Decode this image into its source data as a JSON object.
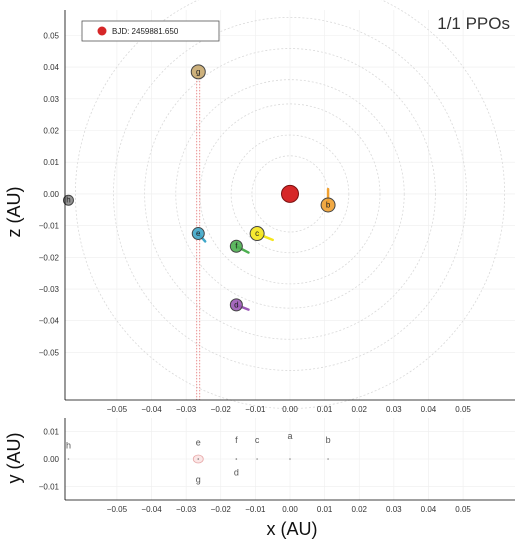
{
  "chart_data": [
    {
      "type": "scatter",
      "title": "1/1 PPOs",
      "xlabel": "",
      "ylabel": "z (AU)",
      "xlim": [
        -0.065,
        0.065
      ],
      "ylim": [
        -0.065,
        0.058
      ],
      "xticks": [
        -0.05,
        -0.04,
        -0.03,
        -0.02,
        -0.01,
        0.0,
        0.01,
        0.02,
        0.03,
        0.04,
        0.05
      ],
      "xtick_labels": [
        "−0.05",
        "−0.04",
        "−0.03",
        "−0.02",
        "−0.01",
        "0.00",
        "0.01",
        "0.02",
        "0.03",
        "0.04",
        "0.05"
      ],
      "yticks": [
        0.05,
        0.04,
        0.03,
        0.02,
        0.01,
        0.0,
        -0.01,
        -0.02,
        -0.03,
        -0.04,
        -0.05
      ],
      "ytick_labels": [
        "0.05",
        "0.04",
        "0.03",
        "0.02",
        "0.01",
        "0.00",
        "−0.01",
        "−0.02",
        "−0.03",
        "−0.04",
        "−0.05"
      ],
      "grid": true,
      "legend": {
        "position": "top-left",
        "entries": [
          {
            "name": "BJD: 2459881.650",
            "color": "#d62728"
          }
        ]
      },
      "orbit_radii": [
        0.011,
        0.017,
        0.026,
        0.033,
        0.042,
        0.051,
        0.062
      ],
      "star": {
        "x": 0.0,
        "z": 0.0,
        "color": "#d62728"
      },
      "points": [
        {
          "label": "b",
          "x": 0.011,
          "z": -0.0035,
          "color": "#f0a030",
          "arrow": [
            0.0,
            0.005
          ]
        },
        {
          "label": "c",
          "x": -0.0095,
          "z": -0.0125,
          "color": "#f5e61c",
          "arrow": [
            0.0045,
            -0.002
          ]
        },
        {
          "label": "d",
          "x": -0.0155,
          "z": -0.035,
          "color": "#9b59b6",
          "arrow": [
            0.0035,
            -0.0015
          ]
        },
        {
          "label": "e",
          "x": -0.0265,
          "z": -0.0125,
          "color": "#3fa7c9",
          "arrow": [
            0.002,
            -0.0025
          ]
        },
        {
          "label": "f",
          "x": -0.0155,
          "z": -0.0165,
          "color": "#4caf50",
          "arrow": [
            0.0035,
            -0.002
          ]
        },
        {
          "label": "g",
          "x": -0.0265,
          "z": 0.0385,
          "color": "#c8a96e",
          "arrow": [
            0.0,
            0.0
          ]
        },
        {
          "label": "h",
          "x": -0.064,
          "z": -0.002,
          "color": "#888888",
          "arrow": [
            0.0,
            0.0
          ]
        }
      ]
    },
    {
      "type": "scatter",
      "xlabel": "x (AU)",
      "ylabel": "y (AU)",
      "xlim": [
        -0.065,
        0.065
      ],
      "ylim": [
        -0.015,
        0.015
      ],
      "xticks": [
        -0.05,
        -0.04,
        -0.03,
        -0.02,
        -0.01,
        0.0,
        0.01,
        0.02,
        0.03,
        0.04,
        0.05
      ],
      "xtick_labels": [
        "−0.05",
        "−0.04",
        "−0.03",
        "−0.02",
        "−0.01",
        "0.00",
        "0.01",
        "0.02",
        "0.03",
        "0.04",
        "0.05"
      ],
      "yticks": [
        0.01,
        0.0,
        -0.01
      ],
      "ytick_labels": [
        "0.01",
        "0.00",
        "−0.01"
      ],
      "grid": true,
      "points": [
        {
          "label": "a",
          "x": 0.0,
          "y": 0.0
        },
        {
          "label": "b",
          "x": 0.011,
          "y": 0.0
        },
        {
          "label": "c",
          "x": -0.0095,
          "y": 0.0
        },
        {
          "label": "d",
          "x": -0.0155,
          "y": 0.0
        },
        {
          "label": "e",
          "x": -0.0265,
          "y": 0.0
        },
        {
          "label": "f",
          "x": -0.0155,
          "y": 0.0
        },
        {
          "label": "g",
          "x": -0.0265,
          "y": 0.0
        },
        {
          "label": "h",
          "x": -0.064,
          "y": 0.0
        }
      ],
      "label_offsets_y": {
        "a": 0.0085,
        "b": 0.007,
        "c": 0.007,
        "d": -0.005,
        "e": 0.006,
        "f": 0.007,
        "g": -0.0075,
        "h": 0.005
      }
    }
  ]
}
